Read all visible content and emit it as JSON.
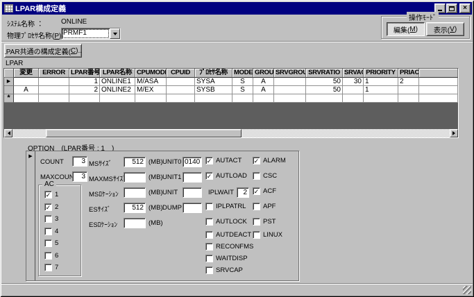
{
  "window": {
    "title": "LPAR構成定義"
  },
  "header": {
    "system": {
      "label": "ｼｽﾃﾑ名称 ：",
      "value": "ONLINE"
    },
    "processor": {
      "pre": "物理ﾌﾟﾛｾｻ名称(",
      "key": "P",
      "post": ") ：",
      "value": "PRMF1"
    },
    "mode_group": {
      "label": "操作ﾓｰﾄﾞ",
      "edit": {
        "pre": "編集(",
        "key": "M",
        "post": ")"
      },
      "view": {
        "pre": "表示(",
        "key": "V",
        "post": ")"
      }
    }
  },
  "common_button": {
    "pre": "LPAR共通の構成定義(",
    "key": "C",
    "post": ")..."
  },
  "table": {
    "label": "LPAR",
    "columns": [
      "変更",
      "ERROR",
      "LPAR番号",
      "LPAR名称",
      "CPUMODE",
      "CPUID",
      "ﾌﾟﾛｾｻ名称",
      "MODE",
      "GROUP",
      "SRVGROUP",
      "SRVRATIO",
      "SRVAC",
      "PRIORITY",
      "PRIAC",
      ""
    ],
    "rows": [
      {
        "selector": "▶",
        "cells": [
          "",
          "",
          "1",
          "ONLINE1",
          "M/ASA",
          "",
          "SYSA",
          "S",
          "A",
          "",
          "50",
          "30",
          "1",
          "2",
          ""
        ]
      },
      {
        "selector": "",
        "cells": [
          "A",
          "",
          "2",
          "ONLINE2",
          "M/EX",
          "",
          "SYSB",
          "S",
          "A",
          "",
          "50",
          "",
          "1",
          "",
          ""
        ]
      },
      {
        "selector": "*",
        "cells": [
          "",
          "",
          "",
          "",
          "",
          "",
          "",
          "",
          "",
          "",
          "",
          "",
          "",
          "",
          ""
        ]
      }
    ]
  },
  "option": {
    "label": "OPTION　(LPAR番号 : 1　)",
    "count": {
      "label": "COUNT",
      "value": "3"
    },
    "maxcount": {
      "label": "MAXCOUNT",
      "value": "3"
    },
    "ac_group": {
      "label": "AC",
      "items": [
        {
          "label": "1",
          "checked": true
        },
        {
          "label": "2",
          "checked": true
        },
        {
          "label": "3",
          "checked": false
        },
        {
          "label": "4",
          "checked": false
        },
        {
          "label": "5",
          "checked": false
        },
        {
          "label": "6",
          "checked": false
        },
        {
          "label": "7",
          "checked": false
        }
      ]
    },
    "memory_fields": [
      {
        "label": "MSｻｲｽﾞ",
        "value": "512",
        "unit": "(MB)"
      },
      {
        "label": "MAXMSｻｲｽﾞ",
        "value": "",
        "unit": "(MB)"
      },
      {
        "label": "MSﾛｹｰｼｮﾝ",
        "value": "",
        "unit": "(MB)"
      },
      {
        "label": "ESｻｲｽﾞ",
        "value": "512",
        "unit": "(MB)"
      },
      {
        "label": "ESﾛｹｰｼｮﾝ",
        "value": "",
        "unit": "(MB)"
      }
    ],
    "unit_fields": [
      {
        "label": "UNIT0",
        "value": "0140"
      },
      {
        "label": "UNIT1",
        "value": ""
      },
      {
        "label": "UNIT",
        "value": ""
      },
      {
        "label": "DUMP",
        "value": ""
      }
    ],
    "flag_column_1": [
      {
        "type": "checkbox",
        "label": "AUTACT",
        "checked": true
      },
      {
        "type": "checkbox",
        "label": "AUTLOAD",
        "checked": true
      },
      {
        "type": "field",
        "label": "IPLWAIT",
        "value": "2"
      },
      {
        "type": "checkbox",
        "label": "IPLPATRL",
        "checked": false
      },
      {
        "type": "checkbox",
        "label": "AUTLOCK",
        "checked": false
      },
      {
        "type": "checkbox",
        "label": "AUTDEACT",
        "checked": false
      },
      {
        "type": "checkbox",
        "label": "RECONFMS",
        "checked": false
      },
      {
        "type": "checkbox",
        "label": "WAITDISP",
        "checked": false
      },
      {
        "type": "checkbox",
        "label": "SRVCAP",
        "checked": false
      }
    ],
    "flag_column_2": [
      {
        "label": "ALARM",
        "checked": true
      },
      {
        "label": "CSC",
        "checked": false
      },
      {
        "label": "ACF",
        "checked": true
      },
      {
        "label": "APF",
        "checked": false
      },
      {
        "label": "PST",
        "checked": false
      },
      {
        "label": "LINUX",
        "checked": false
      }
    ]
  },
  "colors": {
    "titlebar": "#000080",
    "chrome": "#c0c0c0",
    "table_empty_area": "#5e5e5e"
  }
}
